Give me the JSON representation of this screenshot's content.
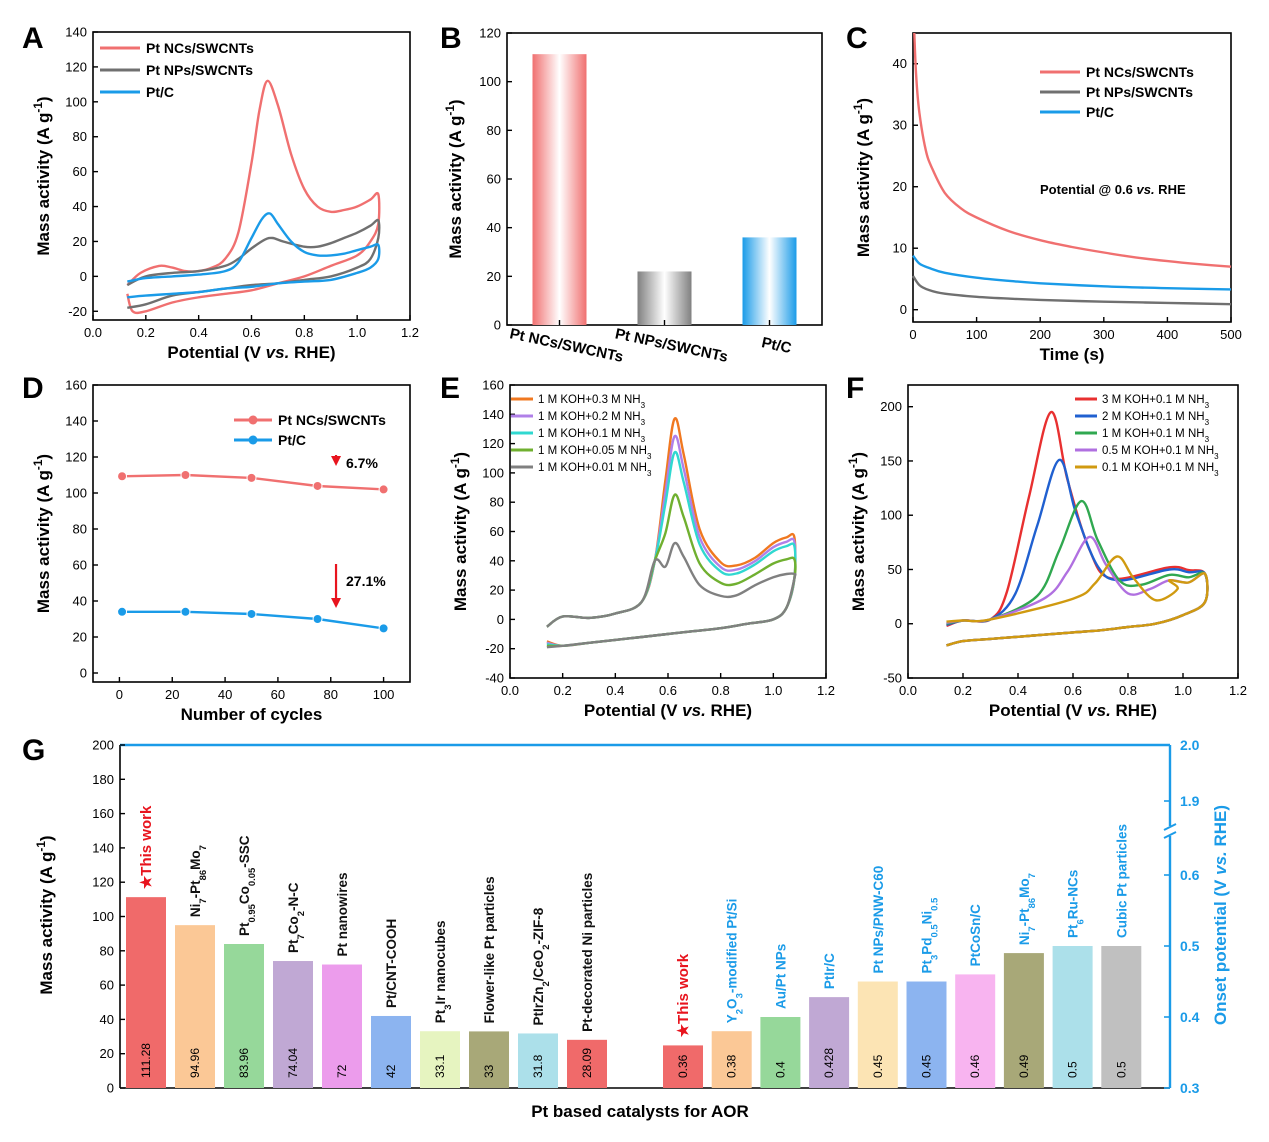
{
  "chart_data": [
    {
      "panel": "A",
      "type": "line",
      "xlabel": "Potential (V vs. RHE)",
      "ylabel": "Mass activity (A g-1)",
      "xlim": [
        0.0,
        1.2
      ],
      "ylim": [
        -25,
        140
      ],
      "xticks": [
        "0.0",
        "0.2",
        "0.4",
        "0.6",
        "0.8",
        "1.0",
        "1.2"
      ],
      "yticks": [
        "-20",
        "0",
        "20",
        "40",
        "60",
        "80",
        "100",
        "120",
        "140"
      ],
      "legend": [
        "Pt NCs/SWCNTs",
        "Pt NPs/SWCNTs",
        "Pt/C"
      ],
      "colors": [
        "#f07070",
        "#707070",
        "#1a9be8"
      ],
      "series": [
        {
          "name": "Pt NCs/SWCNTs",
          "x": [
            0.13,
            0.18,
            0.25,
            0.3,
            0.35,
            0.4,
            0.45,
            0.5,
            0.55,
            0.6,
            0.63,
            0.66,
            0.7,
            0.75,
            0.8,
            0.85,
            0.9,
            0.95,
            1.0,
            1.05,
            1.08,
            1.08,
            1.05,
            1.0,
            0.9,
            0.8,
            0.7,
            0.6,
            0.5,
            0.4,
            0.3,
            0.2,
            0.15,
            0.13
          ],
          "y": [
            -5,
            2,
            6,
            5,
            3,
            3,
            5,
            10,
            25,
            65,
            95,
            112,
            98,
            70,
            50,
            40,
            37,
            38,
            40,
            44,
            47,
            30,
            20,
            12,
            6,
            0,
            -4,
            -8,
            -10,
            -12,
            -15,
            -20,
            -20,
            -10
          ]
        },
        {
          "name": "Pt NPs/SWCNTs",
          "x": [
            0.13,
            0.2,
            0.3,
            0.4,
            0.5,
            0.55,
            0.6,
            0.65,
            0.68,
            0.72,
            0.8,
            0.85,
            0.9,
            0.95,
            1.0,
            1.05,
            1.08,
            1.08,
            1.05,
            1.0,
            0.9,
            0.8,
            0.7,
            0.6,
            0.5,
            0.4,
            0.3,
            0.2,
            0.13
          ],
          "y": [
            -5,
            0,
            2,
            3,
            6,
            10,
            16,
            21,
            22,
            20,
            17,
            17,
            19,
            22,
            25,
            29,
            32,
            22,
            10,
            5,
            0,
            -2,
            -4,
            -5,
            -7,
            -9,
            -11,
            -16,
            -18
          ]
        },
        {
          "name": "Pt/C",
          "x": [
            0.13,
            0.2,
            0.3,
            0.4,
            0.5,
            0.55,
            0.6,
            0.64,
            0.67,
            0.7,
            0.75,
            0.8,
            0.85,
            0.9,
            0.95,
            1.0,
            1.05,
            1.08,
            1.08,
            1.05,
            1.0,
            0.9,
            0.8,
            0.7,
            0.6,
            0.5,
            0.4,
            0.3,
            0.2,
            0.13
          ],
          "y": [
            -3,
            -1,
            0,
            1,
            3,
            8,
            22,
            33,
            36,
            30,
            20,
            14,
            12,
            12,
            13,
            15,
            17,
            18,
            10,
            5,
            2,
            -2,
            -3,
            -4,
            -6,
            -7,
            -9,
            -10,
            -11,
            -12
          ]
        }
      ]
    },
    {
      "panel": "B",
      "type": "bar",
      "ylabel": "Mass activity (A g-1)",
      "ylim": [
        0,
        120
      ],
      "yticks": [
        "0",
        "20",
        "40",
        "60",
        "80",
        "100",
        "120"
      ],
      "categories": [
        "Pt NCs/SWCNTs",
        "Pt NPs/SWCNTs",
        "Pt/C"
      ],
      "values": [
        111.3,
        22,
        36
      ],
      "colors": [
        "#f07070",
        "#808080",
        "#1a9be8"
      ]
    },
    {
      "panel": "C",
      "type": "line",
      "xlabel": "Time (s)",
      "ylabel": "Mass activity (A g-1)",
      "xlim": [
        0,
        500
      ],
      "ylim": [
        -2,
        45
      ],
      "xticks": [
        "0",
        "100",
        "200",
        "300",
        "400",
        "500"
      ],
      "yticks": [
        "0",
        "10",
        "20",
        "30",
        "40"
      ],
      "legend": [
        "Pt NCs/SWCNTs",
        "Pt NPs/SWCNTs",
        "Pt/C"
      ],
      "colors": [
        "#f07070",
        "#707070",
        "#1a9be8"
      ],
      "annotation": "Potential @ 0.6 vs. RHE",
      "series": [
        {
          "name": "Pt NCs/SWCNTs",
          "x": [
            2,
            5,
            10,
            20,
            30,
            50,
            75,
            100,
            150,
            200,
            250,
            300,
            350,
            400,
            450,
            500
          ],
          "y": [
            45,
            38,
            32,
            26,
            23,
            19,
            16.5,
            15,
            12.8,
            11.3,
            10.2,
            9.3,
            8.5,
            7.9,
            7.4,
            7.0
          ]
        },
        {
          "name": "Pt NPs/SWCNTs",
          "x": [
            0,
            10,
            25,
            50,
            100,
            150,
            200,
            300,
            400,
            500
          ],
          "y": [
            5.5,
            4.0,
            3.2,
            2.6,
            2.1,
            1.8,
            1.6,
            1.3,
            1.1,
            0.9
          ]
        },
        {
          "name": "Pt/C",
          "x": [
            0,
            10,
            25,
            50,
            100,
            150,
            200,
            300,
            400,
            500
          ],
          "y": [
            8.8,
            7.5,
            6.8,
            6.0,
            5.2,
            4.7,
            4.3,
            3.8,
            3.5,
            3.3
          ]
        }
      ]
    },
    {
      "panel": "D",
      "type": "line",
      "xlabel": "Number of cycles",
      "ylabel": "Mass activity (A g-1)",
      "xlim": [
        -10,
        110
      ],
      "ylim": [
        -5,
        160
      ],
      "xticks": [
        "0",
        "20",
        "40",
        "60",
        "80",
        "100"
      ],
      "yticks": [
        "0",
        "20",
        "40",
        "60",
        "80",
        "100",
        "120",
        "140",
        "160"
      ],
      "legend": [
        "Pt NCs/SWCNTs",
        "Pt/C"
      ],
      "colors": [
        "#f07070",
        "#1a9be8"
      ],
      "annotations": [
        "6.7%",
        "27.1%"
      ],
      "series": [
        {
          "name": "Pt NCs/SWCNTs",
          "x": [
            1,
            25,
            50,
            75,
            100
          ],
          "y": [
            109.3,
            110,
            108.4,
            103.9,
            102
          ]
        },
        {
          "name": "Pt/C",
          "x": [
            1,
            25,
            50,
            75,
            100
          ],
          "y": [
            34,
            34,
            32.8,
            30,
            24.8
          ]
        }
      ]
    },
    {
      "panel": "E",
      "type": "line",
      "xlabel": "Potential (V vs. RHE)",
      "ylabel": "Mass activity (A g-1)",
      "xlim": [
        0.0,
        1.2
      ],
      "ylim": [
        -40,
        160
      ],
      "xticks": [
        "0.0",
        "0.2",
        "0.4",
        "0.6",
        "0.8",
        "1.0",
        "1.2"
      ],
      "yticks": [
        "-40",
        "-20",
        "0",
        "20",
        "40",
        "60",
        "80",
        "100",
        "120",
        "140",
        "160"
      ],
      "legend": [
        "1 M KOH+0.3 M NH3",
        "1 M KOH+0.2 M NH3",
        "1 M KOH+0.1 M NH3",
        "1 M KOH+0.05 M NH3",
        "1 M KOH+0.01 M NH3"
      ],
      "colors": [
        "#f07820",
        "#b080e8",
        "#30d8d0",
        "#70b030",
        "#808080"
      ],
      "peaks": [
        137,
        125,
        114,
        85,
        52
      ],
      "end_values": [
        56,
        53,
        50,
        41,
        31
      ]
    },
    {
      "panel": "F",
      "type": "line",
      "xlabel": "Potential (V vs. RHE)",
      "ylabel": "Mass activity (A g-1)",
      "xlim": [
        0.0,
        1.2
      ],
      "ylim": [
        -50,
        220
      ],
      "xticks": [
        "0.0",
        "0.2",
        "0.4",
        "0.6",
        "0.8",
        "1.0",
        "1.2"
      ],
      "yticks": [
        "-50",
        "0",
        "50",
        "100",
        "150",
        "200"
      ],
      "legend": [
        "3 M KOH+0.1 M NH3",
        "2 M KOH+0.1 M NH3",
        "1 M KOH+0.1 M NH3",
        "0.5 M KOH+0.1 M NH3",
        "0.1 M KOH+0.1 M NH3"
      ],
      "colors": [
        "#e83030",
        "#2060d0",
        "#30a850",
        "#b070e0",
        "#d09a10"
      ],
      "peak_positions": [
        0.52,
        0.55,
        0.63,
        0.66,
        0.76
      ],
      "peaks": [
        195,
        151,
        113,
        80,
        62
      ]
    },
    {
      "panel": "G",
      "type": "bar",
      "xlabel": "Pt based catalysts for AOR",
      "ylabel": "Mass activity (A g-1)",
      "y2label": "Onset potential (V vs. RHE)",
      "ylim": [
        0,
        200
      ],
      "y2lim": [
        0.3,
        2.0
      ],
      "yticks": [
        "0",
        "20",
        "40",
        "60",
        "80",
        "100",
        "120",
        "140",
        "160",
        "180",
        "200"
      ],
      "y2ticks": [
        "0.3",
        "0.4",
        "0.5",
        "0.6",
        "1.9",
        "2.0"
      ],
      "left_group": [
        {
          "label": "★This work",
          "value": 111.28,
          "value_label": "111.28",
          "color": "#f06a6a",
          "label_color": "#e8141e"
        },
        {
          "label": "Ni7-Pt86Mo7",
          "value": 94.96,
          "value_label": "94.96",
          "color": "#fbc896",
          "label_color": "#111111"
        },
        {
          "label": "Pt0.95Co0.05-SSC",
          "value": 83.96,
          "value_label": "83.96",
          "color": "#96d89a",
          "label_color": "#111111"
        },
        {
          "label": "Pt7Co2-N-C",
          "value": 74.04,
          "value_label": "74.04",
          "color": "#c0a8d4",
          "label_color": "#111111"
        },
        {
          "label": "Pt nanowires",
          "value": 72,
          "value_label": "72",
          "color": "#ec9cec",
          "label_color": "#111111"
        },
        {
          "label": "Pt/CNT-COOH",
          "value": 42,
          "value_label": "42",
          "color": "#8cb4f0",
          "label_color": "#111111"
        },
        {
          "label": "Pt3Ir nanocubes",
          "value": 33.1,
          "value_label": "33.1",
          "color": "#e6f4c0",
          "label_color": "#111111"
        },
        {
          "label": "Flower-like Pt particles",
          "value": 33,
          "value_label": "33",
          "color": "#a8a878",
          "label_color": "#111111"
        },
        {
          "label": "PtIrZn2/CeO2-ZIF-8",
          "value": 31.8,
          "value_label": "31.8",
          "color": "#ace0ea",
          "label_color": "#111111"
        },
        {
          "label": "Pt-decorated Ni particles",
          "value": 28.09,
          "value_label": "28.09",
          "color": "#f06a6a",
          "label_color": "#111111"
        }
      ],
      "right_group": [
        {
          "label": "★This work",
          "value": 0.36,
          "value_label": "0.36",
          "color": "#f06a6a",
          "label_color": "#e8141e"
        },
        {
          "label": "Y2O3-modified Pt/Si",
          "value": 0.38,
          "value_label": "0.38",
          "color": "#fbc896",
          "label_color": "#1a9be8"
        },
        {
          "label": "Au/Pt NPs",
          "value": 0.4,
          "value_label": "0.4",
          "color": "#96d89a",
          "label_color": "#1a9be8"
        },
        {
          "label": "PtIr/C",
          "value": 0.428,
          "value_label": "0.428",
          "color": "#c0a8d4",
          "label_color": "#1a9be8"
        },
        {
          "label": "Pt NPs/PNW-C60",
          "value": 0.45,
          "value_label": "0.45",
          "color": "#fce4b4",
          "label_color": "#1a9be8"
        },
        {
          "label": "Pt3Pd0.5Ni0.5",
          "value": 0.45,
          "value_label": "0.45",
          "color": "#8cb4f0",
          "label_color": "#1a9be8"
        },
        {
          "label": "PtCoSn/C",
          "value": 0.46,
          "value_label": "0.46",
          "color": "#f8b4f0",
          "label_color": "#1a9be8"
        },
        {
          "label": "Ni7-Pt86Mo7",
          "value": 0.49,
          "value_label": "0.49",
          "color": "#a8a878",
          "label_color": "#1a9be8"
        },
        {
          "label": "Pt6Ru-NCs",
          "value": 0.5,
          "value_label": "0.5",
          "color": "#ace0ea",
          "label_color": "#1a9be8"
        },
        {
          "label": "Cubic Pt particles",
          "value": 0.5,
          "value_label": "0.5",
          "color": "#c0c0c0",
          "label_color": "#1a9be8"
        }
      ]
    }
  ],
  "panel_letters": [
    "A",
    "B",
    "C",
    "D",
    "E",
    "F",
    "G"
  ]
}
